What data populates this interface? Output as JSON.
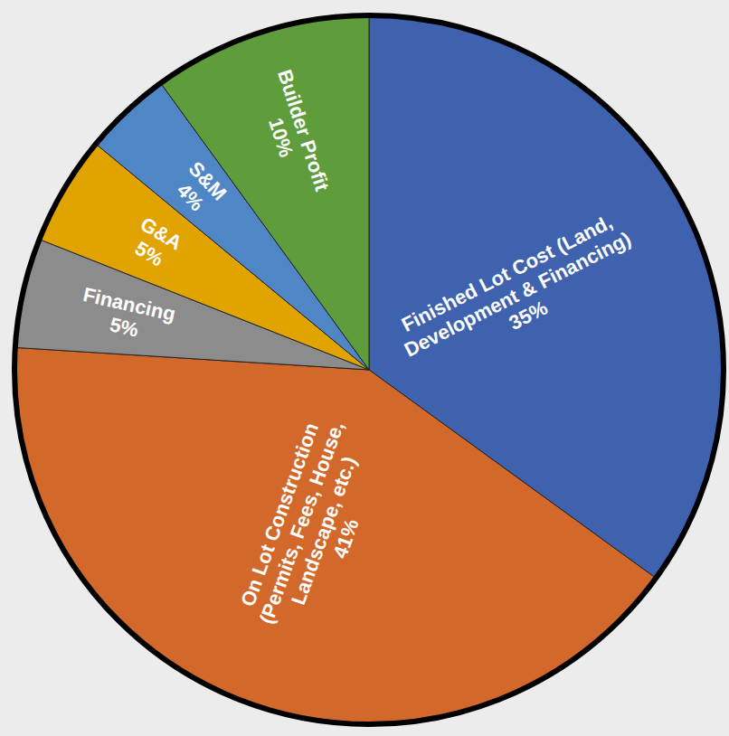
{
  "chart_data": {
    "type": "pie",
    "categories": [
      "Finished Lot Cost (Land, Development & Financing)",
      "On Lot Construction (Permits, Fees, House, Landscape, etc.)",
      "Financing",
      "G&A",
      "S&M",
      "Builder Profit"
    ],
    "values": [
      35,
      41,
      5,
      5,
      4,
      10
    ],
    "value_labels": [
      "35%",
      "41%",
      "5%",
      "5%",
      "4%",
      "10%"
    ],
    "colors": [
      "#3f62af",
      "#d2692a",
      "#8c8c8c",
      "#e0a300",
      "#4f86c6",
      "#5e9c3c"
    ],
    "data_labels": true
  }
}
